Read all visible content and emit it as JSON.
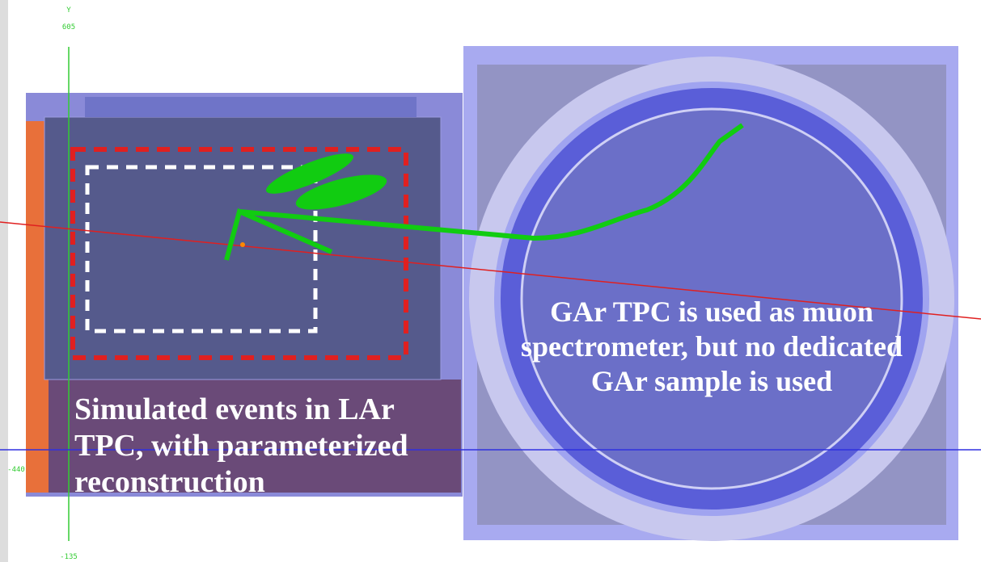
{
  "axes": {
    "y_label": "Y",
    "y_top": "605",
    "y_bottom": "-135",
    "x_left": "-440"
  },
  "annotations": {
    "left": "Simulated events in LAr TPC, with parameterized reconstruction",
    "right": "GAr TPC is used as muon spectrometer, but no dedicated GAr sample is used"
  }
}
